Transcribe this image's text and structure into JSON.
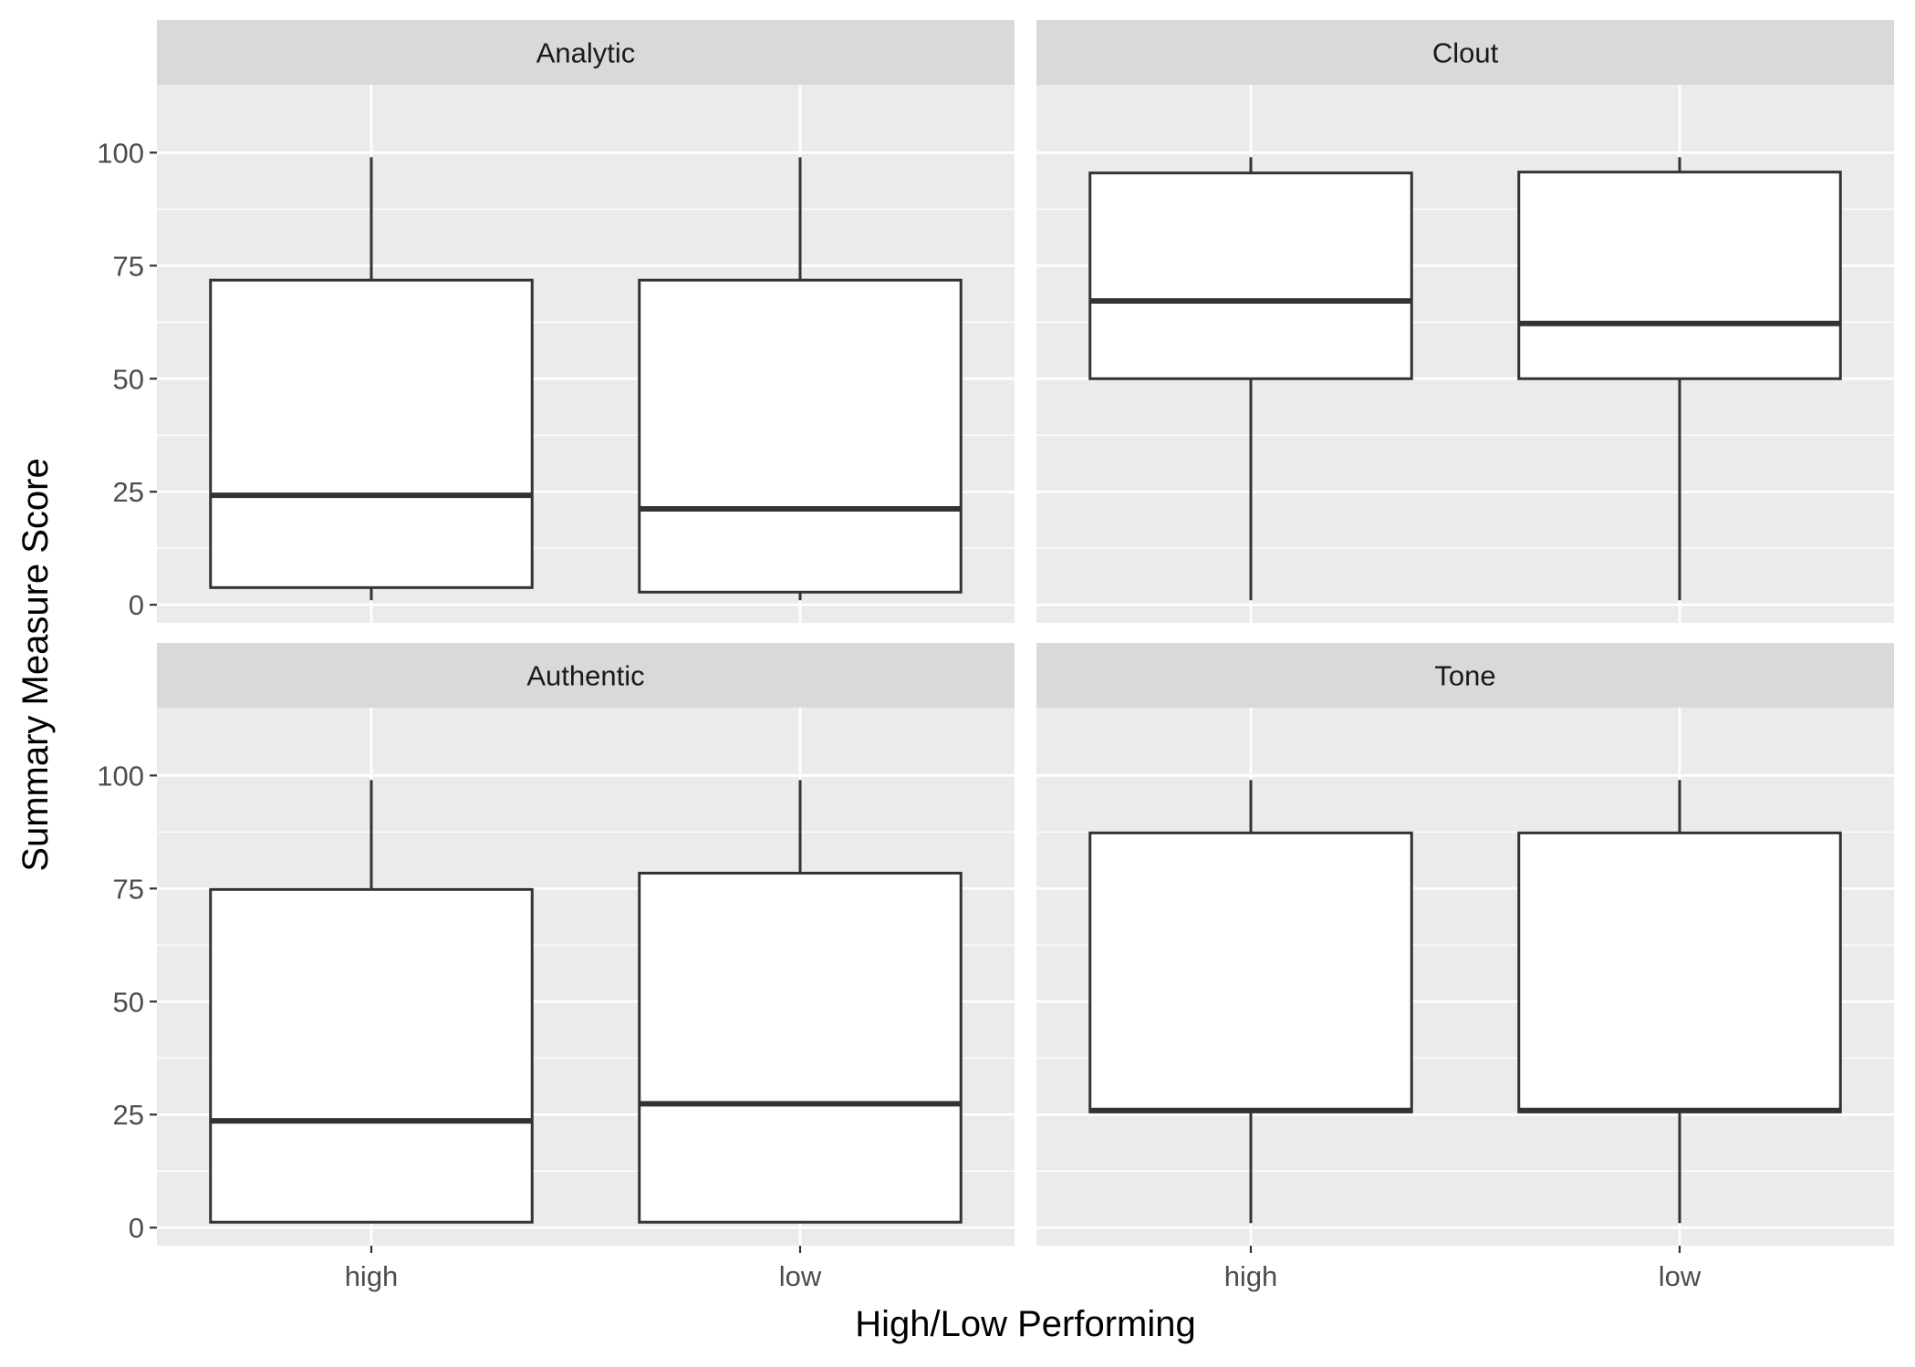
{
  "chart_data": {
    "type": "boxplot",
    "xlabel": "High/Low Performing",
    "ylabel": "Summary Measure Score",
    "categories": [
      "high",
      "low"
    ],
    "ylim": [
      -4,
      115
    ],
    "yticks": [
      0,
      25,
      50,
      75,
      100
    ],
    "grid": true,
    "panels": [
      {
        "title": "Analytic",
        "boxes": [
          {
            "category": "high",
            "lower_whisker": 1,
            "q1": 3.8,
            "median": 24.2,
            "q3": 71.8,
            "upper_whisker": 99
          },
          {
            "category": "low",
            "lower_whisker": 1,
            "q1": 2.8,
            "median": 21.2,
            "q3": 71.8,
            "upper_whisker": 99
          }
        ]
      },
      {
        "title": "Clout",
        "boxes": [
          {
            "category": "high",
            "lower_whisker": 1,
            "q1": 50,
            "median": 67.2,
            "q3": 95.5,
            "upper_whisker": 99
          },
          {
            "category": "low",
            "lower_whisker": 1,
            "q1": 50,
            "median": 62.2,
            "q3": 95.7,
            "upper_whisker": 99
          }
        ]
      },
      {
        "title": "Authentic",
        "boxes": [
          {
            "category": "high",
            "lower_whisker": 1,
            "q1": 1.2,
            "median": 23.6,
            "q3": 74.8,
            "upper_whisker": 99
          },
          {
            "category": "low",
            "lower_whisker": 1,
            "q1": 1.2,
            "median": 27.4,
            "q3": 78.4,
            "upper_whisker": 99
          }
        ]
      },
      {
        "title": "Tone",
        "boxes": [
          {
            "category": "high",
            "lower_whisker": 1,
            "q1": 25.6,
            "median": 25.9,
            "q3": 87.3,
            "upper_whisker": 99
          },
          {
            "category": "low",
            "lower_whisker": 1,
            "q1": 25.6,
            "median": 25.9,
            "q3": 87.3,
            "upper_whisker": 99
          }
        ]
      }
    ]
  }
}
